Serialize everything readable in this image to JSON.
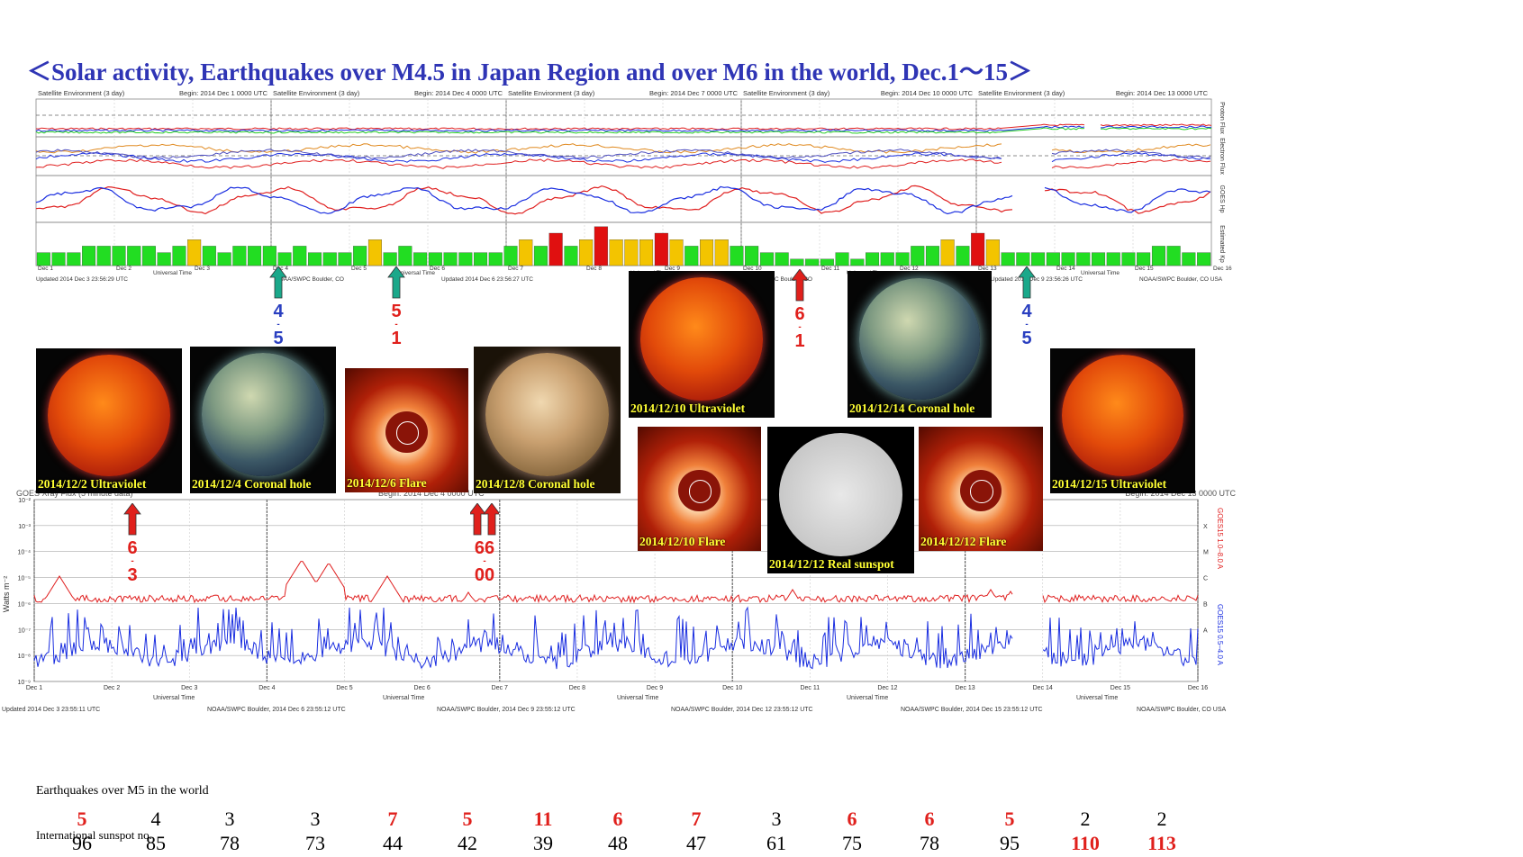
{
  "title": "＜Solar activity, Earthquakes over M4.5 in Japan Region and over M6 in the world, Dec.1～15＞",
  "top_panel": {
    "headers": [
      {
        "left": "Satellite Environment (3 day)",
        "right": "Begin: 2014 Dec 1 0000 UTC"
      },
      {
        "left": "Satellite Environment (3 day)",
        "right": "Begin: 2014 Dec 4 0000 UTC"
      },
      {
        "left": "Satellite Environment (3 day)",
        "right": "Begin: 2014 Dec 7 0000 UTC"
      },
      {
        "left": "Satellite Environment (3 day)",
        "right": "Begin: 2014 Dec 10 0000 UTC"
      },
      {
        "left": "Satellite Environment (3 day)",
        "right": "Begin: 2014 Dec 13 0000 UTC"
      }
    ],
    "side_labels": [
      "Proton Flux",
      "Electron Flux",
      "GOES Hp",
      "Estimated Kp"
    ],
    "footers": [
      "Updated 2014 Dec 3 23:56:29 UTC",
      "NOAA/SWPC Boulder, CO",
      "Updated 2014 Dec 6 23:56:27 UTC",
      "NOAA/SWPC Boulder, CO",
      "Updated 2014 Dec 9 23:56:26 UTC",
      "NOAA/SWPC Boulder, CO USA"
    ],
    "xlabel": "Universal Time"
  },
  "images": [
    {
      "caption": "2014/12/2 Ultraviolet",
      "kind": "uv"
    },
    {
      "caption": "2014/12/4 Coronal hole",
      "kind": "hole"
    },
    {
      "caption": "2014/12/6 Flare",
      "kind": "flare"
    },
    {
      "caption": "2014/12/8 Coronal hole",
      "kind": "brown"
    },
    {
      "caption": "2014/12/10 Ultraviolet",
      "kind": "uv"
    },
    {
      "caption": "2014/12/14 Coronal hole",
      "kind": "hole"
    },
    {
      "caption": "2014/12/15 Ultraviolet",
      "kind": "uv"
    },
    {
      "caption": "2014/12/10 Flare",
      "kind": "flare"
    },
    {
      "caption": "2014/12/12 Real sunspot",
      "kind": "white"
    },
    {
      "caption": "2014/12/12 Flare",
      "kind": "flare"
    }
  ],
  "arrows": [
    {
      "label1": "4",
      "label2": "5",
      "color": "#1aa88a",
      "text_color": "#2a3fc0"
    },
    {
      "label1": "5",
      "label2": "1",
      "color": "#1aa88a",
      "text_color": "#e0201c"
    },
    {
      "label1": "6",
      "label2": "1",
      "color": "#e0201c",
      "text_color": "#e0201c"
    },
    {
      "label1": "4",
      "label2": "5",
      "color": "#1aa88a",
      "text_color": "#2a3fc0"
    },
    {
      "label1": "6",
      "label2": "3",
      "color": "#e0201c",
      "text_color": "#e0201c"
    },
    {
      "label1": "66",
      "label2": "00",
      "color": "#e0201c",
      "text_color": "#e0201c"
    }
  ],
  "xray_panel": {
    "header_left": "GOES Xray Flux (5 minute data)",
    "header_begin": "Begin: 2014 Dec 4 0000 UTC",
    "header_right": "Begin: 2014 Dec 13 0000 UTC",
    "ylabel": "Watts m⁻²",
    "ytick_labels": [
      "10⁻²",
      "10⁻³",
      "10⁻⁴",
      "10⁻⁵",
      "10⁻⁶",
      "10⁻⁷",
      "10⁻⁸",
      "10⁻⁹"
    ],
    "class_labels": [
      "X",
      "M",
      "C",
      "B",
      "A"
    ],
    "right_label_red": "GOES15 1.0–8.0 A",
    "right_label_blue": "GOES15 0.5–4.0 A",
    "day_labels": [
      "Dec 1",
      "Dec 2",
      "Dec 3",
      "Dec 4",
      "Dec 5",
      "Dec 6",
      "Dec 7",
      "Dec 8",
      "Dec 9",
      "Dec 10",
      "Dec 11",
      "Dec 12",
      "Dec 13",
      "Dec 14",
      "Dec 15",
      "Dec 16"
    ],
    "xlabel": "Universal Time",
    "footers": [
      "Updated 2014 Dec 3 23:55:11 UTC",
      "NOAA/SWPC Boulder, 2014 Dec 6 23:55:12 UTC",
      "NOAA/SWPC Boulder, 2014 Dec 9 23:55:12 UTC",
      "NOAA/SWPC Boulder, 2014 Dec 12 23:55:12 UTC",
      "NOAA/SWPC Boulder, 2014 Dec 15 23:55:12 UTC",
      "NOAA/SWPC Boulder, CO USA"
    ]
  },
  "earthquakes_label": "Earthquakes over M5 in the world",
  "sunspot_label": "International sunspot no.",
  "chart_data": {
    "type": "table",
    "title": "＜Solar activity, Earthquakes over M4.5 in Japan Region and over M6 in the world, Dec.1～15＞",
    "series": [
      {
        "name": "Earthquakes over M5 in the world",
        "values": [
          5,
          4,
          3,
          3,
          7,
          5,
          11,
          6,
          7,
          3,
          6,
          6,
          5,
          2,
          2
        ]
      },
      {
        "name": "International sunspot no.",
        "values": [
          96,
          85,
          78,
          73,
          44,
          42,
          39,
          48,
          47,
          61,
          75,
          78,
          95,
          110,
          113
        ]
      }
    ],
    "kp_values": [
      2,
      2,
      2,
      3,
      3,
      3,
      3,
      3,
      2,
      3,
      4,
      3,
      2,
      3,
      3,
      3,
      2,
      3,
      2,
      2,
      2,
      3,
      4,
      2,
      3,
      2,
      2,
      2,
      2,
      2,
      2,
      3,
      4,
      3,
      5,
      3,
      4,
      6,
      4,
      4,
      4,
      5,
      4,
      3,
      4,
      4,
      3,
      3,
      2,
      2,
      1,
      1,
      1,
      2,
      1,
      2,
      2,
      2,
      3,
      3,
      4,
      3,
      5,
      4,
      2,
      2,
      2,
      2,
      2,
      2,
      2,
      2,
      2,
      2,
      3,
      3,
      2,
      2
    ],
    "earthquake_colors": [
      "red",
      "black",
      "black",
      "black",
      "red",
      "red",
      "red",
      "red",
      "red",
      "black",
      "red",
      "red",
      "red",
      "black",
      "black"
    ],
    "sunspot_colors": [
      "black",
      "black",
      "black",
      "black",
      "black",
      "black",
      "black",
      "black",
      "black",
      "black",
      "black",
      "black",
      "black",
      "red",
      "red"
    ],
    "colors": {
      "red": "#e0201c",
      "black": "#000000",
      "kp_green": "#22dd22",
      "kp_yellow": "#f3c400",
      "kp_red": "#e01010",
      "xray_long": "#e02020",
      "xray_short": "#1a2ee0"
    }
  }
}
